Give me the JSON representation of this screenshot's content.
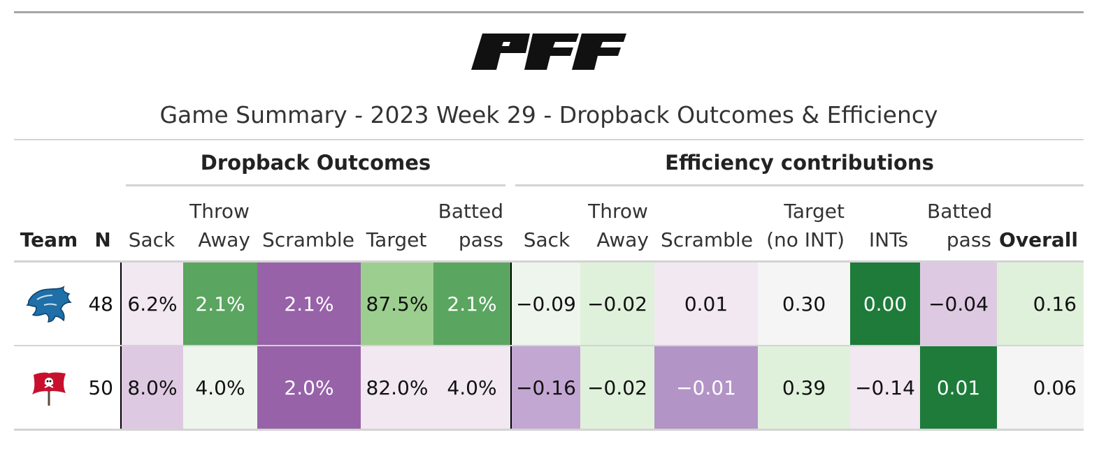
{
  "logo_text": "PFF",
  "title": "Game Summary - 2023 Week 29 - Dropback Outcomes & Efficiency",
  "spanners": {
    "outcomes": "Dropback Outcomes",
    "efficiency": "Efficiency contributions"
  },
  "columns": {
    "team": "Team",
    "n": "N",
    "out_sack": "Sack",
    "out_throwaway_1": "Throw",
    "out_throwaway_2": "Away",
    "out_scramble": "Scramble",
    "out_target": "Target",
    "out_batted_1": "Batted",
    "out_batted_2": "pass",
    "eff_sack": "Sack",
    "eff_throwaway_1": "Throw",
    "eff_throwaway_2": "Away",
    "eff_scramble": "Scramble",
    "eff_target_1": "Target",
    "eff_target_2": "(no INT)",
    "eff_ints": "INTs",
    "eff_batted_1": "Batted",
    "eff_batted_2": "pass",
    "overall": "Overall"
  },
  "rows": [
    {
      "team_logo": "detroit-lions-logo",
      "n": "48",
      "out_sack": "6.2%",
      "out_throwaway": "2.1%",
      "out_scramble": "2.1%",
      "out_target": "87.5%",
      "out_batted": "2.1%",
      "eff_sack": "−0.09",
      "eff_throwaway": "−0.02",
      "eff_scramble": "0.01",
      "eff_target": "0.30",
      "eff_ints": "0.00",
      "eff_batted": "−0.04",
      "overall": "0.16"
    },
    {
      "team_logo": "tampa-bay-buccaneers-logo",
      "n": "50",
      "out_sack": "8.0%",
      "out_throwaway": "4.0%",
      "out_scramble": "2.0%",
      "out_target": "82.0%",
      "out_batted": "4.0%",
      "eff_sack": "−0.16",
      "eff_throwaway": "−0.02",
      "eff_scramble": "−0.01",
      "eff_target": "0.39",
      "eff_ints": "−0.14",
      "eff_batted": "0.01",
      "overall": "0.06"
    }
  ],
  "colors": {
    "dark_green": "#1e7b3a",
    "medium_green": "#5aa560",
    "light_green": "#9ccf8f",
    "pale_green": "#e0f1db",
    "paler_green": "#eef5ec",
    "neutral": "#f5f5f5",
    "pale_purple": "#f1e8f1",
    "light_purple": "#dec9e2",
    "medium_purple": "#c3a7d3",
    "medium_purple_2": "#b294c6",
    "strong_purple": "#9762a8"
  }
}
